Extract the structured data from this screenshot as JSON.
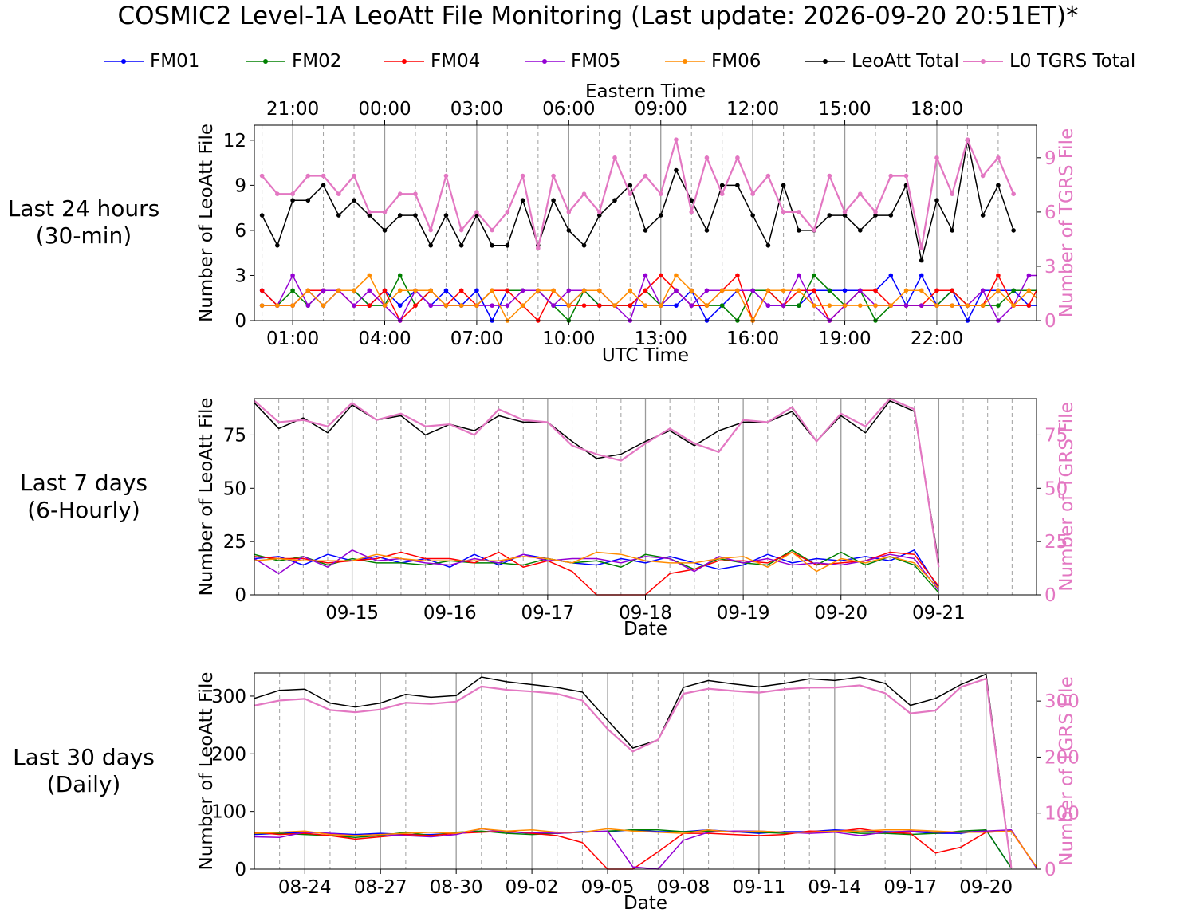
{
  "title": "COSMIC2 Level-1A LeoAtt File Monitoring (Last update: 2026-09-20 20:51ET)*",
  "colors": {
    "FM01": "#0000ff",
    "FM02": "#008000",
    "FM04": "#ff0000",
    "FM05": "#9400d3",
    "FM06": "#ff8c00",
    "LeoAtt Total": "#000000",
    "L0 TGRS Total": "#e377c2"
  },
  "legend": [
    "FM01",
    "FM02",
    "FM04",
    "FM05",
    "FM06",
    "LeoAtt Total",
    "L0 TGRS Total"
  ],
  "row_labels": {
    "hours": [
      "Last 24 hours",
      "(30-min)"
    ],
    "days": [
      "Last 7 days",
      "(6-Hourly)"
    ],
    "month": [
      "Last 30 days",
      "(Daily)"
    ]
  },
  "chart_data": [
    {
      "id": "hours",
      "type": "line",
      "markers": true,
      "xlabel": "UTC Time",
      "xlabel_top": "Eastern Time",
      "ylabel": "Number of LeoAtt File",
      "ylabel_right": "Number of TGRS File",
      "xlim": [
        -0.5,
        50.5
      ],
      "ylim": [
        0,
        13
      ],
      "ylim_right": [
        0,
        10.8
      ],
      "yticks": [
        0,
        3,
        6,
        9,
        12
      ],
      "yticks_right": [
        0,
        3,
        6,
        9
      ],
      "xticks": [
        2,
        8,
        14,
        20,
        26,
        32,
        38,
        44
      ],
      "xtick_labels": [
        "01:00",
        "04:00",
        "07:00",
        "10:00",
        "13:00",
        "16:00",
        "19:00",
        "22:00"
      ],
      "xticks_top": [
        2,
        8,
        14,
        20,
        26,
        32,
        38,
        44
      ],
      "xtick_labels_top": [
        "21:00",
        "00:00",
        "03:00",
        "06:00",
        "09:00",
        "12:00",
        "15:00",
        "18:00"
      ],
      "grid_solid": [
        2,
        8,
        14,
        20,
        26,
        32,
        38,
        44
      ],
      "grid_dashed": [
        0,
        4,
        6,
        10,
        12,
        16,
        18,
        22,
        24,
        28,
        30,
        34,
        36,
        40,
        42,
        46,
        48
      ],
      "series": [
        {
          "name": "FM01",
          "axis": "left",
          "values": [
            2,
            1,
            1,
            2,
            1,
            2,
            2,
            1,
            2,
            1,
            2,
            1,
            2,
            1,
            2,
            0,
            2,
            2,
            2,
            1,
            1,
            2,
            1,
            1,
            1,
            1,
            1,
            1,
            2,
            0,
            1,
            2,
            2,
            1,
            1,
            1,
            2,
            2,
            2,
            2,
            2,
            3,
            1,
            3,
            1,
            2,
            0,
            2,
            2,
            2,
            1,
            1
          ]
        },
        {
          "name": "FM02",
          "axis": "left",
          "values": [
            1,
            1,
            2,
            1,
            2,
            2,
            2,
            1,
            1,
            3,
            1,
            2,
            1,
            1,
            1,
            2,
            2,
            2,
            2,
            1,
            0,
            2,
            1,
            1,
            1,
            2,
            1,
            2,
            1,
            1,
            1,
            0,
            2,
            2,
            1,
            1,
            3,
            2,
            1,
            2,
            0,
            1,
            1,
            1,
            1,
            2,
            1,
            1,
            1,
            2,
            2,
            2
          ]
        },
        {
          "name": "FM04",
          "axis": "left",
          "values": [
            2,
            1,
            1,
            2,
            2,
            2,
            1,
            1,
            2,
            0,
            1,
            2,
            1,
            2,
            1,
            2,
            2,
            1,
            0,
            2,
            1,
            1,
            1,
            1,
            1,
            2,
            3,
            2,
            1,
            1,
            2,
            3,
            0,
            2,
            1,
            2,
            2,
            0,
            1,
            2,
            2,
            1,
            1,
            1,
            2,
            2,
            1,
            1,
            3,
            1,
            1,
            3,
            1
          ]
        },
        {
          "name": "FM05",
          "axis": "left",
          "values": [
            1,
            1,
            3,
            1,
            2,
            2,
            1,
            2,
            1,
            0,
            2,
            1,
            1,
            1,
            1,
            1,
            1,
            2,
            2,
            1,
            2,
            2,
            2,
            1,
            0,
            3,
            1,
            2,
            1,
            2,
            2,
            2,
            2,
            1,
            1,
            3,
            1,
            0,
            1,
            2,
            1,
            1,
            1,
            1,
            1,
            1,
            1,
            2,
            0,
            1,
            3,
            3,
            1,
            1
          ]
        },
        {
          "name": "FM06",
          "axis": "left",
          "values": [
            1,
            1,
            1,
            2,
            1,
            2,
            2,
            3,
            1,
            2,
            2,
            2,
            1,
            1,
            1,
            2,
            0,
            1,
            2,
            2,
            1,
            2,
            2,
            1,
            2,
            1,
            1,
            3,
            2,
            1,
            2,
            2,
            0,
            2,
            2,
            2,
            1,
            1,
            1,
            1,
            1,
            1,
            2,
            2,
            1,
            1,
            1,
            1,
            2,
            1,
            2,
            1
          ]
        },
        {
          "name": "LeoAtt Total",
          "axis": "left",
          "values": [
            7,
            5,
            8,
            8,
            9,
            7,
            8,
            7,
            6,
            7,
            7,
            5,
            7,
            5,
            7,
            5,
            5,
            8,
            5,
            8,
            6,
            5,
            7,
            8,
            9,
            6,
            7,
            10,
            8,
            6,
            9,
            9,
            7,
            5,
            9,
            6,
            6,
            7,
            7,
            6,
            7,
            7,
            9,
            4,
            8,
            6,
            12,
            7,
            9,
            6
          ]
        },
        {
          "name": "L0 TGRS Total",
          "axis": "right",
          "values": [
            8,
            7,
            7,
            8,
            8,
            7,
            8,
            6,
            6,
            7,
            7,
            5,
            8,
            5,
            6,
            5,
            6,
            8,
            4,
            8,
            6,
            7,
            6,
            9,
            7,
            8,
            7,
            10,
            6,
            9,
            7,
            9,
            7,
            8,
            6,
            6,
            5,
            8,
            6,
            7,
            6,
            8,
            8,
            4,
            9,
            7,
            10,
            8,
            9,
            7
          ]
        }
      ]
    },
    {
      "id": "days",
      "type": "line",
      "markers": false,
      "xlabel": "Date",
      "ylabel": "Number of LeoAtt File",
      "ylabel_right": "Number of TGRS File",
      "xlim": [
        0,
        32
      ],
      "ylim": [
        0,
        92
      ],
      "ylim_right": [
        0,
        92
      ],
      "yticks": [
        0,
        25,
        50,
        75
      ],
      "yticks_right": [
        0,
        25,
        50,
        75
      ],
      "xticks": [
        4,
        8,
        12,
        16,
        20,
        24,
        28
      ],
      "xtick_labels": [
        "09-15",
        "09-16",
        "09-17",
        "09-18",
        "09-19",
        "09-20",
        "09-21"
      ],
      "grid_solid": [
        4,
        8,
        12,
        16,
        20,
        24,
        28
      ],
      "grid_dashed": [
        1,
        2,
        3,
        5,
        6,
        7,
        9,
        10,
        11,
        13,
        14,
        15,
        17,
        18,
        19,
        21,
        22,
        23,
        25,
        26,
        27,
        29,
        30,
        31
      ],
      "series": [
        {
          "name": "FM01",
          "axis": "left",
          "values": [
            17,
            18,
            14,
            19,
            16,
            18,
            15,
            17,
            13,
            19,
            14,
            19,
            17,
            15,
            14,
            17,
            15,
            18,
            15,
            12,
            14,
            19,
            15,
            17,
            16,
            18,
            16,
            21,
            3
          ]
        },
        {
          "name": "FM02",
          "axis": "left",
          "values": [
            19,
            16,
            18,
            14,
            17,
            15,
            15,
            14,
            16,
            15,
            15,
            14,
            17,
            15,
            16,
            13,
            19,
            17,
            12,
            17,
            15,
            14,
            21,
            14,
            20,
            14,
            18,
            14,
            1
          ]
        },
        {
          "name": "FM04",
          "axis": "left",
          "values": [
            18,
            17,
            17,
            15,
            16,
            17,
            20,
            17,
            17,
            15,
            20,
            13,
            16,
            11,
            0,
            0,
            0,
            10,
            12,
            16,
            16,
            15,
            20,
            14,
            15,
            16,
            20,
            19,
            4
          ]
        },
        {
          "name": "FM05",
          "axis": "left",
          "values": [
            17,
            10,
            18,
            13,
            21,
            16,
            17,
            15,
            14,
            17,
            15,
            19,
            16,
            17,
            17,
            15,
            18,
            17,
            11,
            18,
            15,
            17,
            14,
            15,
            14,
            16,
            19,
            17,
            2
          ]
        },
        {
          "name": "FM06",
          "axis": "left",
          "values": [
            16,
            17,
            16,
            16,
            16,
            19,
            17,
            16,
            16,
            16,
            16,
            18,
            17,
            15,
            20,
            19,
            16,
            15,
            15,
            17,
            18,
            13,
            20,
            11,
            17,
            15,
            18,
            15,
            3
          ]
        },
        {
          "name": "LeoAtt Total",
          "axis": "left",
          "values": [
            90,
            78,
            83,
            76,
            89,
            82,
            84,
            75,
            80,
            77,
            84,
            81,
            81,
            72,
            64,
            66,
            72,
            77,
            70,
            77,
            81,
            81,
            86,
            72,
            84,
            76,
            91,
            86,
            15
          ]
        },
        {
          "name": "L0 TGRS Total",
          "axis": "right",
          "values": [
            91,
            81,
            82,
            79,
            90,
            82,
            85,
            79,
            80,
            75,
            87,
            82,
            81,
            70,
            66,
            63,
            71,
            78,
            71,
            67,
            82,
            81,
            88,
            72,
            85,
            79,
            92,
            87,
            13
          ]
        }
      ]
    },
    {
      "id": "month",
      "type": "line",
      "markers": false,
      "xlabel": "Date",
      "ylabel": "Number of LeoAtt File",
      "ylabel_right": "Number of TGRS File",
      "xlim": [
        0,
        31
      ],
      "ylim": [
        0,
        340
      ],
      "ylim_right": [
        0,
        350
      ],
      "yticks": [
        0,
        100,
        200,
        300
      ],
      "yticks_right": [
        0,
        100,
        200,
        300
      ],
      "xticks": [
        2,
        5,
        8,
        11,
        14,
        17,
        20,
        23,
        26,
        29
      ],
      "xtick_labels": [
        "08-24",
        "08-27",
        "08-30",
        "09-02",
        "09-05",
        "09-08",
        "09-11",
        "09-14",
        "09-17",
        "09-20"
      ],
      "grid_solid": [
        2,
        5,
        8,
        11,
        14,
        17,
        20,
        23,
        26,
        29
      ],
      "grid_dashed": [
        1,
        3,
        4,
        6,
        7,
        9,
        10,
        12,
        13,
        15,
        16,
        18,
        19,
        21,
        22,
        24,
        25,
        27,
        28,
        30
      ],
      "series": [
        {
          "name": "FM01",
          "axis": "left",
          "values": [
            60,
            62,
            64,
            62,
            60,
            62,
            60,
            60,
            62,
            65,
            65,
            62,
            62,
            65,
            65,
            68,
            65,
            65,
            68,
            65,
            62,
            65,
            65,
            68,
            66,
            65,
            65,
            62,
            62,
            68,
            2
          ]
        },
        {
          "name": "FM02",
          "axis": "left",
          "values": [
            62,
            62,
            60,
            58,
            55,
            58,
            64,
            58,
            64,
            66,
            62,
            60,
            62,
            64,
            66,
            68,
            68,
            65,
            66,
            65,
            64,
            62,
            64,
            66,
            62,
            62,
            60,
            62,
            66,
            68,
            2
          ]
        },
        {
          "name": "FM04",
          "axis": "left",
          "values": [
            64,
            60,
            62,
            58,
            52,
            56,
            60,
            58,
            62,
            64,
            66,
            62,
            58,
            46,
            0,
            0,
            30,
            62,
            62,
            60,
            58,
            60,
            66,
            65,
            70,
            64,
            62,
            28,
            38,
            64,
            66,
            3
          ]
        },
        {
          "name": "FM05",
          "axis": "left",
          "values": [
            56,
            55,
            64,
            62,
            58,
            60,
            58,
            56,
            60,
            70,
            64,
            64,
            62,
            64,
            66,
            4,
            0,
            50,
            64,
            66,
            66,
            64,
            62,
            64,
            58,
            64,
            66,
            64,
            64,
            66,
            68,
            2
          ]
        },
        {
          "name": "FM06",
          "axis": "left",
          "values": [
            62,
            64,
            66,
            60,
            58,
            60,
            62,
            64,
            62,
            70,
            66,
            68,
            64,
            64,
            70,
            66,
            64,
            62,
            68,
            64,
            66,
            64,
            64,
            66,
            66,
            68,
            68,
            66,
            64,
            64,
            66,
            4
          ]
        },
        {
          "name": "LeoAtt Total",
          "axis": "left",
          "values": [
            296,
            310,
            312,
            288,
            281,
            288,
            303,
            298,
            301,
            333,
            325,
            320,
            315,
            307,
            258,
            210,
            224,
            315,
            327,
            321,
            316,
            322,
            330,
            327,
            333,
            322,
            284,
            296,
            320,
            338,
            2
          ]
        },
        {
          "name": "L0 TGRS Total",
          "axis": "right",
          "values": [
            292,
            301,
            304,
            284,
            280,
            285,
            297,
            295,
            299,
            326,
            320,
            317,
            313,
            301,
            250,
            210,
            231,
            313,
            322,
            318,
            315,
            321,
            324,
            324,
            328,
            314,
            278,
            283,
            325,
            340,
            2
          ]
        }
      ]
    }
  ]
}
